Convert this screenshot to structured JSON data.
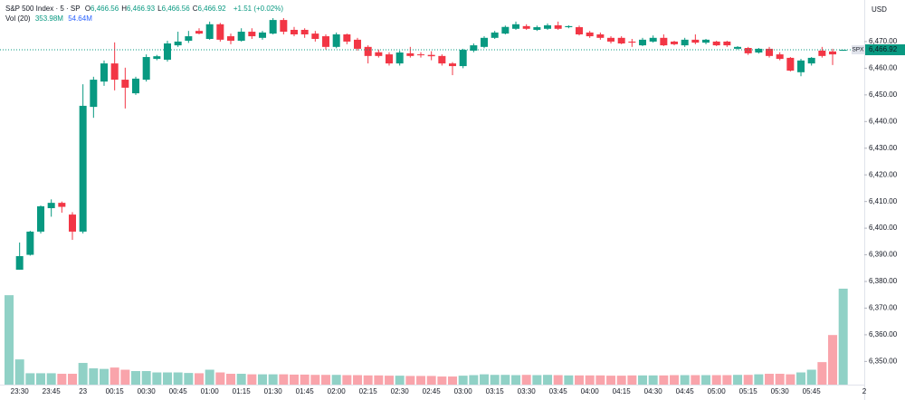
{
  "chart_data": {
    "type": "candlestick",
    "title": "S&P 500 Index · 5 · SP",
    "ohlc_header": [
      {
        "key": "O",
        "value": "6,466.56"
      },
      {
        "key": "H",
        "value": "6,466.93"
      },
      {
        "key": "L",
        "value": "6,466.56"
      },
      {
        "key": "C",
        "value": "6,466.92"
      }
    ],
    "change": "+1.51 (+0.02%)",
    "volume_title": "Vol (20)",
    "volume_value": "353.98M",
    "volume_ma": "54.64M",
    "currency": "USD",
    "last_price": {
      "symbol": "SPX",
      "label": "6,466.92"
    },
    "corner_label": "2",
    "up_color": "#089981",
    "down_color": "#f23645",
    "categories": [
      null,
      "23:30",
      null,
      null,
      "23:45",
      null,
      null,
      "23",
      null,
      null,
      "00:15",
      null,
      null,
      "00:30",
      null,
      null,
      "00:45",
      null,
      null,
      "01:00",
      null,
      null,
      "01:15",
      null,
      null,
      "01:30",
      null,
      null,
      "01:45",
      null,
      null,
      "02:00",
      null,
      null,
      "02:15",
      null,
      null,
      "02:30",
      null,
      null,
      "02:45",
      null,
      null,
      "03:00",
      null,
      null,
      "03:15",
      null,
      null,
      "03:30",
      null,
      null,
      "03:45",
      null,
      null,
      "04:00",
      null,
      null,
      "04:15",
      null,
      null,
      "04:30",
      null,
      null,
      "04:45",
      null,
      null,
      "05:00",
      null,
      null,
      "05:15",
      null,
      null,
      "05:30",
      null,
      null,
      "05:45",
      null,
      null,
      null
    ],
    "open": [
      null,
      6384.4,
      6390.0,
      6398.7,
      6407.5,
      6409.5,
      6405.1,
      6398.7,
      6445.5,
      6455.0,
      6461.8,
      6455.7,
      6450.6,
      6455.7,
      6463.5,
      6463.2,
      6468.6,
      6470.3,
      6474.0,
      6471.0,
      6476.5,
      6472.0,
      6470.3,
      6473.7,
      6471.4,
      6473.0,
      6478.1,
      6474.4,
      6474.4,
      6473.0,
      6472.0,
      6468.0,
      6472.7,
      6470.7,
      6468.0,
      6466.0,
      6465.2,
      6461.8,
      6465.6,
      6465.2,
      6465.0,
      6464.6,
      6461.8,
      6460.8,
      6466.6,
      6468.0,
      6471.4,
      6473.0,
      6474.8,
      6475.8,
      6474.4,
      6474.8,
      6476.1,
      6475.4,
      6475.4,
      6473.4,
      6472.7,
      6471.4,
      6471.4,
      6470.0,
      6468.6,
      6470.0,
      6471.4,
      6470.0,
      6468.6,
      6470.7,
      6469.6,
      6470.0,
      6470.0,
      6467.3,
      6467.6,
      6465.9,
      6467.3,
      6465.2,
      6463.9,
      6458.5,
      6461.8,
      6466.6,
      6466.3,
      6466.56
    ],
    "high": [
      null,
      6394.6,
      6399.0,
      6408.5,
      6410.8,
      6410.0,
      6406.0,
      6454.0,
      6456.8,
      6462.9,
      6469.7,
      6460.2,
      6456.8,
      6465.2,
      6465.0,
      6470.3,
      6473.7,
      6474.0,
      6475.0,
      6477.5,
      6477.0,
      6473.0,
      6475.0,
      6475.0,
      6474.0,
      6478.8,
      6478.8,
      6475.5,
      6475.0,
      6474.0,
      6472.7,
      6473.4,
      6473.0,
      6471.4,
      6468.6,
      6467.0,
      6466.0,
      6466.6,
      6468.0,
      6466.0,
      6466.4,
      6465.2,
      6462.3,
      6467.3,
      6469.3,
      6472.0,
      6474.0,
      6476.0,
      6477.5,
      6476.5,
      6476.0,
      6476.8,
      6477.5,
      6476.1,
      6476.0,
      6474.0,
      6473.4,
      6472.0,
      6472.0,
      6471.0,
      6471.4,
      6472.3,
      6472.7,
      6470.3,
      6471.4,
      6472.7,
      6471.0,
      6470.3,
      6470.3,
      6468.3,
      6468.0,
      6467.6,
      6468.0,
      6466.0,
      6464.2,
      6463.5,
      6464.2,
      6468.0,
      6467.3,
      6466.93
    ],
    "low": [
      null,
      6384.4,
      6389.7,
      6398.0,
      6404.3,
      6405.8,
      6395.6,
      6398.0,
      6441.4,
      6453.4,
      6451.7,
      6444.9,
      6450.0,
      6455.0,
      6463.0,
      6462.5,
      6468.0,
      6469.5,
      6472.7,
      6470.7,
      6470.0,
      6469.0,
      6470.0,
      6471.0,
      6470.7,
      6472.7,
      6472.7,
      6472.0,
      6471.4,
      6470.0,
      6467.0,
      6467.5,
      6469.0,
      6466.6,
      6461.8,
      6464.0,
      6461.0,
      6461.0,
      6464.0,
      6464.0,
      6463.0,
      6461.0,
      6457.4,
      6460.0,
      6466.0,
      6467.5,
      6471.0,
      6472.7,
      6474.4,
      6474.4,
      6474.0,
      6474.4,
      6474.4,
      6475.0,
      6472.3,
      6471.4,
      6470.7,
      6469.3,
      6469.0,
      6468.0,
      6468.3,
      6469.6,
      6468.3,
      6468.6,
      6468.0,
      6469.0,
      6469.0,
      6468.3,
      6468.0,
      6467.0,
      6465.0,
      6465.5,
      6464.0,
      6463.0,
      6458.8,
      6457.0,
      6461.0,
      6464.0,
      6461.2,
      6466.56
    ],
    "close": [
      null,
      6389.5,
      6398.7,
      6408.2,
      6409.5,
      6408.0,
      6398.7,
      6445.9,
      6455.7,
      6461.8,
      6455.7,
      6452.7,
      6456.1,
      6464.2,
      6464.5,
      6469.3,
      6470.0,
      6472.0,
      6473.0,
      6476.5,
      6470.7,
      6470.3,
      6473.7,
      6472.0,
      6473.4,
      6478.1,
      6473.7,
      6472.7,
      6472.7,
      6471.0,
      6468.0,
      6472.7,
      6470.0,
      6467.3,
      6464.6,
      6464.6,
      6461.8,
      6465.9,
      6464.6,
      6464.9,
      6464.5,
      6461.8,
      6460.8,
      6466.9,
      6468.6,
      6471.4,
      6473.4,
      6475.5,
      6476.5,
      6474.8,
      6475.4,
      6476.1,
      6474.8,
      6475.8,
      6472.7,
      6472.0,
      6471.4,
      6470.0,
      6469.3,
      6469.6,
      6470.7,
      6471.4,
      6468.6,
      6469.0,
      6470.7,
      6469.6,
      6470.7,
      6468.6,
      6468.6,
      6468.0,
      6465.6,
      6467.3,
      6464.6,
      6463.5,
      6459.1,
      6462.9,
      6463.9,
      6464.6,
      6465.2,
      6466.92
    ],
    "ylim": [
      6341.3,
      6485.6
    ],
    "yticks": [
      {
        "value": 6470,
        "label": "6,470.00"
      },
      {
        "value": 6460,
        "label": "6,460.00"
      },
      {
        "value": 6450,
        "label": "6,450.00"
      },
      {
        "value": 6440,
        "label": "6,440.00"
      },
      {
        "value": 6430,
        "label": "6,430.00"
      },
      {
        "value": 6420,
        "label": "6,420.00"
      },
      {
        "value": 6410,
        "label": "6,410.00"
      },
      {
        "value": 6400,
        "label": "6,400.00"
      },
      {
        "value": 6390,
        "label": "6,390.00"
      },
      {
        "value": 6380,
        "label": "6,380.00"
      },
      {
        "value": 6370,
        "label": "6,370.00"
      },
      {
        "value": 6360,
        "label": "6,360.00"
      },
      {
        "value": 6350,
        "label": "6,350.00"
      }
    ],
    "volume": {
      "values": [
        330,
        93,
        42,
        42,
        42,
        40,
        40,
        80,
        60,
        58,
        63,
        55,
        50,
        50,
        45,
        45,
        45,
        43,
        42,
        55,
        45,
        40,
        40,
        38,
        38,
        38,
        38,
        37,
        37,
        36,
        36,
        36,
        35,
        35,
        34,
        34,
        33,
        33,
        32,
        32,
        32,
        30,
        30,
        33,
        35,
        38,
        36,
        36,
        35,
        36,
        35,
        36,
        35,
        34,
        34,
        34,
        34,
        33,
        33,
        34,
        34,
        34,
        34,
        35,
        35,
        35,
        35,
        35,
        35,
        36,
        36,
        38,
        40,
        40,
        38,
        45,
        55,
        83,
        183,
        353.98
      ],
      "ylim": [
        0,
        1419
      ]
    },
    "grid": false
  }
}
